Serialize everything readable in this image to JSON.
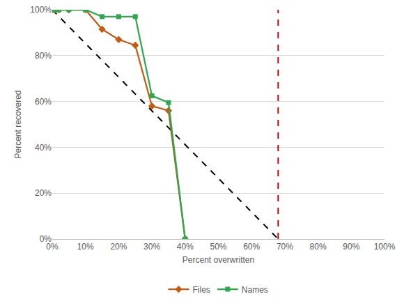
{
  "chart_data": {
    "type": "line",
    "x_label": "Percent overwritten",
    "y_label": "Percent recovered",
    "xlim": [
      0,
      100
    ],
    "ylim": [
      0,
      100
    ],
    "xticks": [
      {
        "value": 0,
        "label": "0%"
      },
      {
        "value": 10,
        "label": "10%"
      },
      {
        "value": 20,
        "label": "20%"
      },
      {
        "value": 30,
        "label": "30%"
      },
      {
        "value": 40,
        "label": "40%"
      },
      {
        "value": 50,
        "label": "50%"
      },
      {
        "value": 60,
        "label": "60%"
      },
      {
        "value": 70,
        "label": "70%"
      },
      {
        "value": 80,
        "label": "80%"
      },
      {
        "value": 90,
        "label": "90%"
      },
      {
        "value": 100,
        "label": "100%"
      }
    ],
    "yticks": [
      {
        "value": 0,
        "label": "0%"
      },
      {
        "value": 20,
        "label": "20%"
      },
      {
        "value": 40,
        "label": "40%"
      },
      {
        "value": 60,
        "label": "60%"
      },
      {
        "value": 80,
        "label": "80%"
      },
      {
        "value": 100,
        "label": "100%"
      }
    ],
    "grid": "y",
    "legend": "bottom",
    "series": [
      {
        "color": "#000000",
        "line_style": "dashed",
        "x": [
          0,
          68
        ],
        "values": [
          100,
          0
        ]
      },
      {
        "color": "#C00000",
        "line_style": "dashed",
        "x": [
          68,
          68
        ],
        "values": [
          0,
          100
        ]
      },
      {
        "name": "Files",
        "color": "#C55A11",
        "marker": "diamond",
        "line_style": "solid",
        "x": [
          0,
          1,
          2,
          5,
          10,
          15,
          20,
          25,
          30,
          35,
          40
        ],
        "values": [
          100,
          100,
          100,
          100,
          100,
          91.5,
          87,
          84.5,
          58,
          56,
          0
        ]
      },
      {
        "name": "Names",
        "color": "#2EA84F",
        "marker": "square",
        "line_style": "solid",
        "x": [
          0,
          1,
          2,
          5,
          10,
          15,
          20,
          25,
          30,
          35,
          40
        ],
        "values": [
          100,
          100,
          100,
          100,
          100,
          97,
          97,
          97,
          62.5,
          59.5,
          0
        ]
      }
    ]
  }
}
